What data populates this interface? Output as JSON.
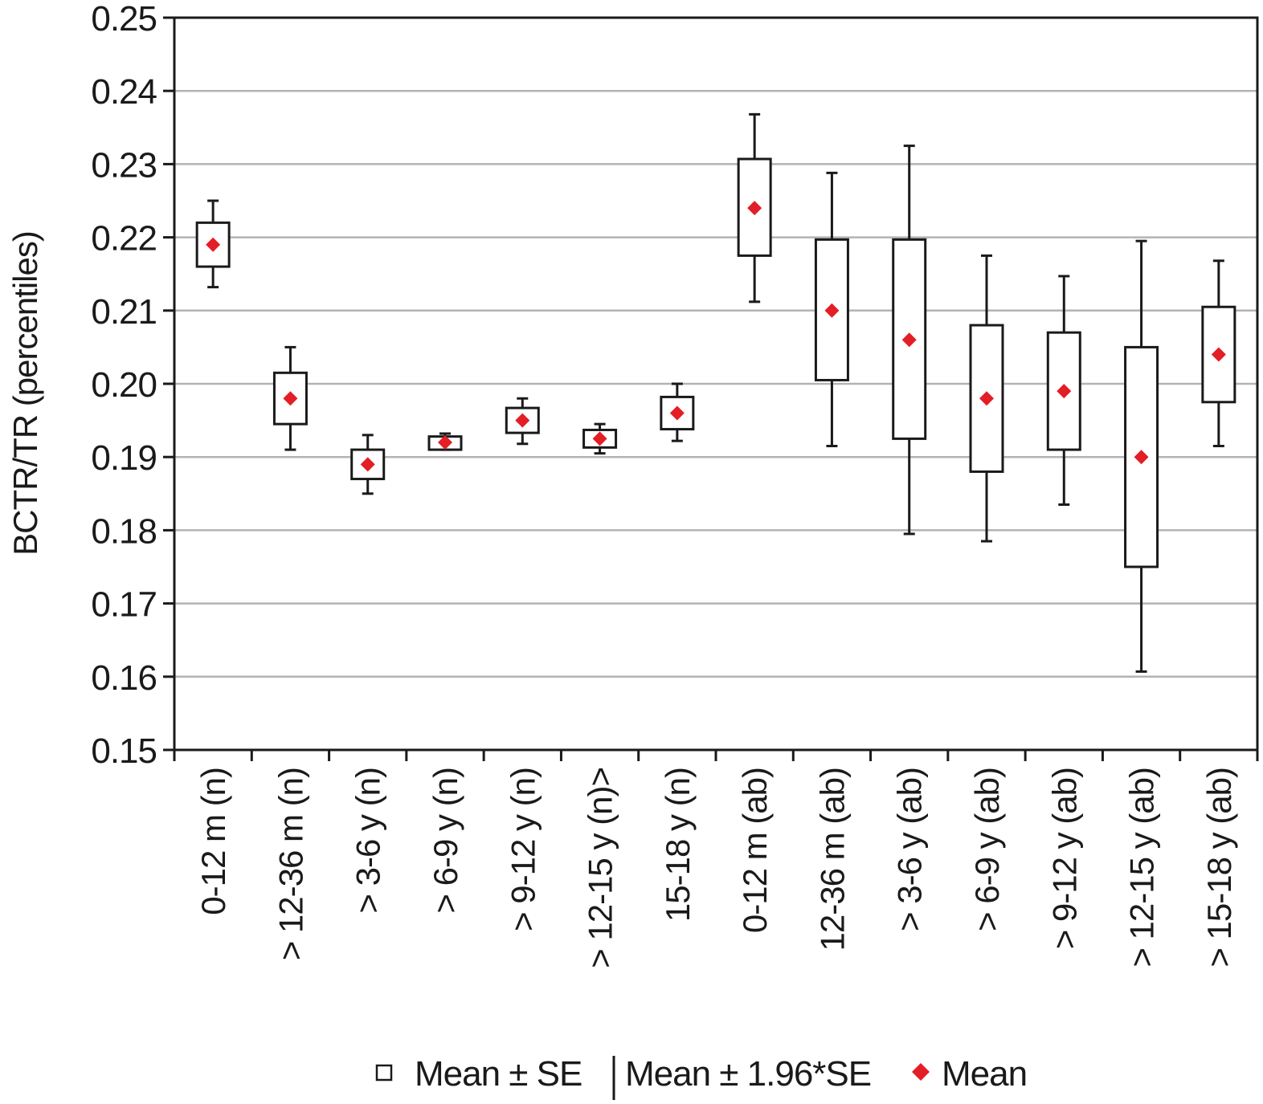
{
  "chart_data": {
    "type": "box",
    "ylabel": "BCTR/TR (percentiles)",
    "xlabel": "",
    "ylim": [
      0.15,
      0.25
    ],
    "yticks": [
      "0.15",
      "0.16",
      "0.17",
      "0.18",
      "0.19",
      "0.20",
      "0.21",
      "0.22",
      "0.23",
      "0.24",
      "0.25"
    ],
    "grid": true,
    "categories": [
      "0-12 m (n)",
      "> 12-36 m (n)",
      "> 3-6 y (n)",
      "> 6-9 y (n)",
      "> 9-12 y (n)",
      "> 12-15 y (n)>",
      "15-18 y (n)",
      "0-12 m (ab)",
      "12-36 m (ab)",
      "> 3-6 y (ab)",
      "> 6-9 y (ab)",
      "> 9-12 y (ab)",
      "> 12-15 y (ab)",
      "> 15-18 y (ab)"
    ],
    "series": [
      {
        "stat": "mean",
        "values": [
          0.219,
          0.198,
          0.189,
          0.192,
          0.195,
          0.1925,
          0.196,
          0.224,
          0.21,
          0.206,
          0.198,
          0.199,
          0.19,
          0.204
        ]
      },
      {
        "stat": "mean_minus_se",
        "values": [
          0.216,
          0.1945,
          0.187,
          0.191,
          0.1933,
          0.1913,
          0.1938,
          0.2175,
          0.2005,
          0.1925,
          0.188,
          0.191,
          0.175,
          0.1975
        ]
      },
      {
        "stat": "mean_plus_se",
        "values": [
          0.222,
          0.2015,
          0.191,
          0.1928,
          0.1967,
          0.1937,
          0.1982,
          0.2307,
          0.2197,
          0.2197,
          0.208,
          0.207,
          0.205,
          0.2105
        ]
      },
      {
        "stat": "mean_minus_1.96se",
        "values": [
          0.2132,
          0.191,
          0.185,
          0.191,
          0.1918,
          0.1905,
          0.1922,
          0.2112,
          0.1915,
          0.1795,
          0.1785,
          0.1835,
          0.1607,
          0.1915
        ]
      },
      {
        "stat": "mean_plus_1.96se",
        "values": [
          0.225,
          0.205,
          0.193,
          0.1932,
          0.198,
          0.1945,
          0.2,
          0.2368,
          0.2288,
          0.2325,
          0.2175,
          0.2147,
          0.2195,
          0.2168
        ]
      }
    ],
    "legend": {
      "position": "bottom",
      "items": [
        {
          "label": "Mean ± SE",
          "marker": "box"
        },
        {
          "label": "Mean ± 1.96*SE",
          "marker": "whisker"
        },
        {
          "label": "Mean",
          "marker": "diamond"
        }
      ]
    },
    "colors": {
      "mean": "#e31e26",
      "box": "#1a1a1a",
      "grid": "#b3b3b3"
    }
  }
}
